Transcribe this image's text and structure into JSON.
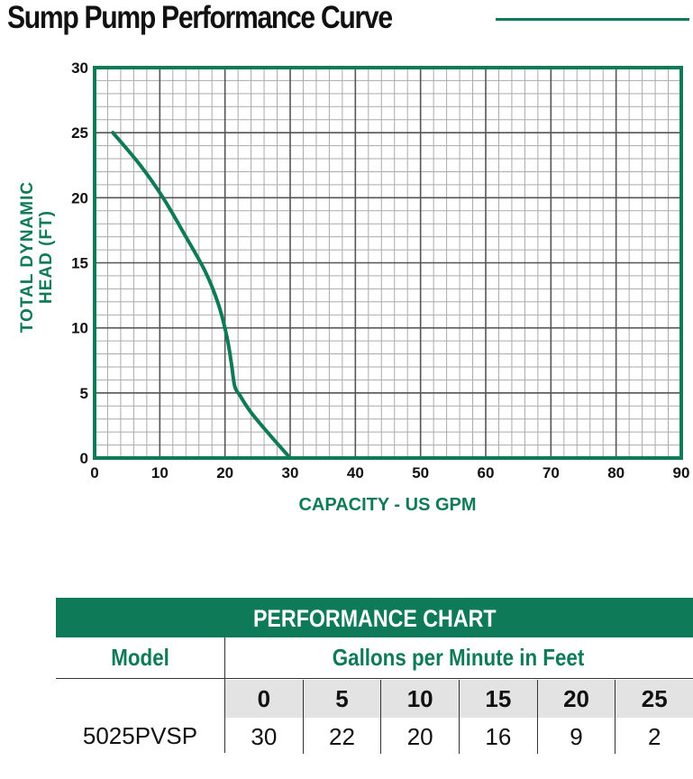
{
  "title": "Sump Pump Performance Curve",
  "colors": {
    "accent": "#0f7a57",
    "grid_minor": "#aaaaaa",
    "grid_major": "#555555"
  },
  "chart_data": {
    "type": "line",
    "title": "Sump Pump Performance Curve",
    "xlabel": "CAPACITY - US GPM",
    "ylabel": "TOTAL DYNAMIC HEAD (FT)",
    "xlim": [
      0,
      90
    ],
    "ylim": [
      0,
      30
    ],
    "x_ticks": [
      "0",
      "10",
      "20",
      "30",
      "40",
      "50",
      "60",
      "70",
      "80",
      "90"
    ],
    "y_ticks": [
      "0",
      "5",
      "10",
      "15",
      "20",
      "25",
      "30"
    ],
    "grid": true,
    "series": [
      {
        "x": [
          2.8,
          7,
          10.5,
          14,
          17,
          19,
          20.3,
          21,
          21.5,
          22.3,
          24,
          27,
          30
        ],
        "y": [
          25,
          22.5,
          20,
          17,
          14.3,
          11.8,
          9.3,
          7.2,
          5.5,
          4.8,
          3.5,
          1.7,
          0
        ]
      }
    ]
  },
  "table": {
    "header": "PERFORMANCE CHART",
    "model_label": "Model",
    "gpm_label": "Gallons per Minute in Feet",
    "columns": [
      "0",
      "5",
      "10",
      "15",
      "20",
      "25"
    ],
    "rows": [
      {
        "model": "5025PVSP",
        "values": [
          "30",
          "22",
          "20",
          "16",
          "9",
          "2"
        ]
      }
    ]
  }
}
